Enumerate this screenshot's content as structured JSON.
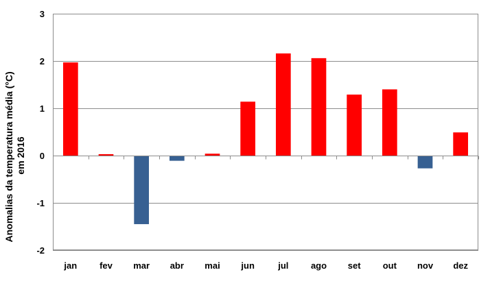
{
  "chart_data": {
    "type": "bar",
    "title": "",
    "xlabel": "",
    "ylabel_lines": [
      "Anomalias da temperatura média (°C)",
      "em 2016"
    ],
    "categories": [
      "jan",
      "fev",
      "mar",
      "abr",
      "mai",
      "jun",
      "jul",
      "ago",
      "set",
      "out",
      "nov",
      "dez"
    ],
    "values": [
      1.97,
      0.03,
      -1.45,
      -0.11,
      0.04,
      1.14,
      2.16,
      2.06,
      1.29,
      1.4,
      -0.27,
      0.49
    ],
    "ylim": [
      -2,
      3
    ],
    "yticks": [
      -2,
      -1,
      0,
      1,
      2,
      3
    ],
    "grid": true,
    "legend": "none",
    "colors": {
      "positive": "#ff0000",
      "negative": "#376092"
    }
  }
}
